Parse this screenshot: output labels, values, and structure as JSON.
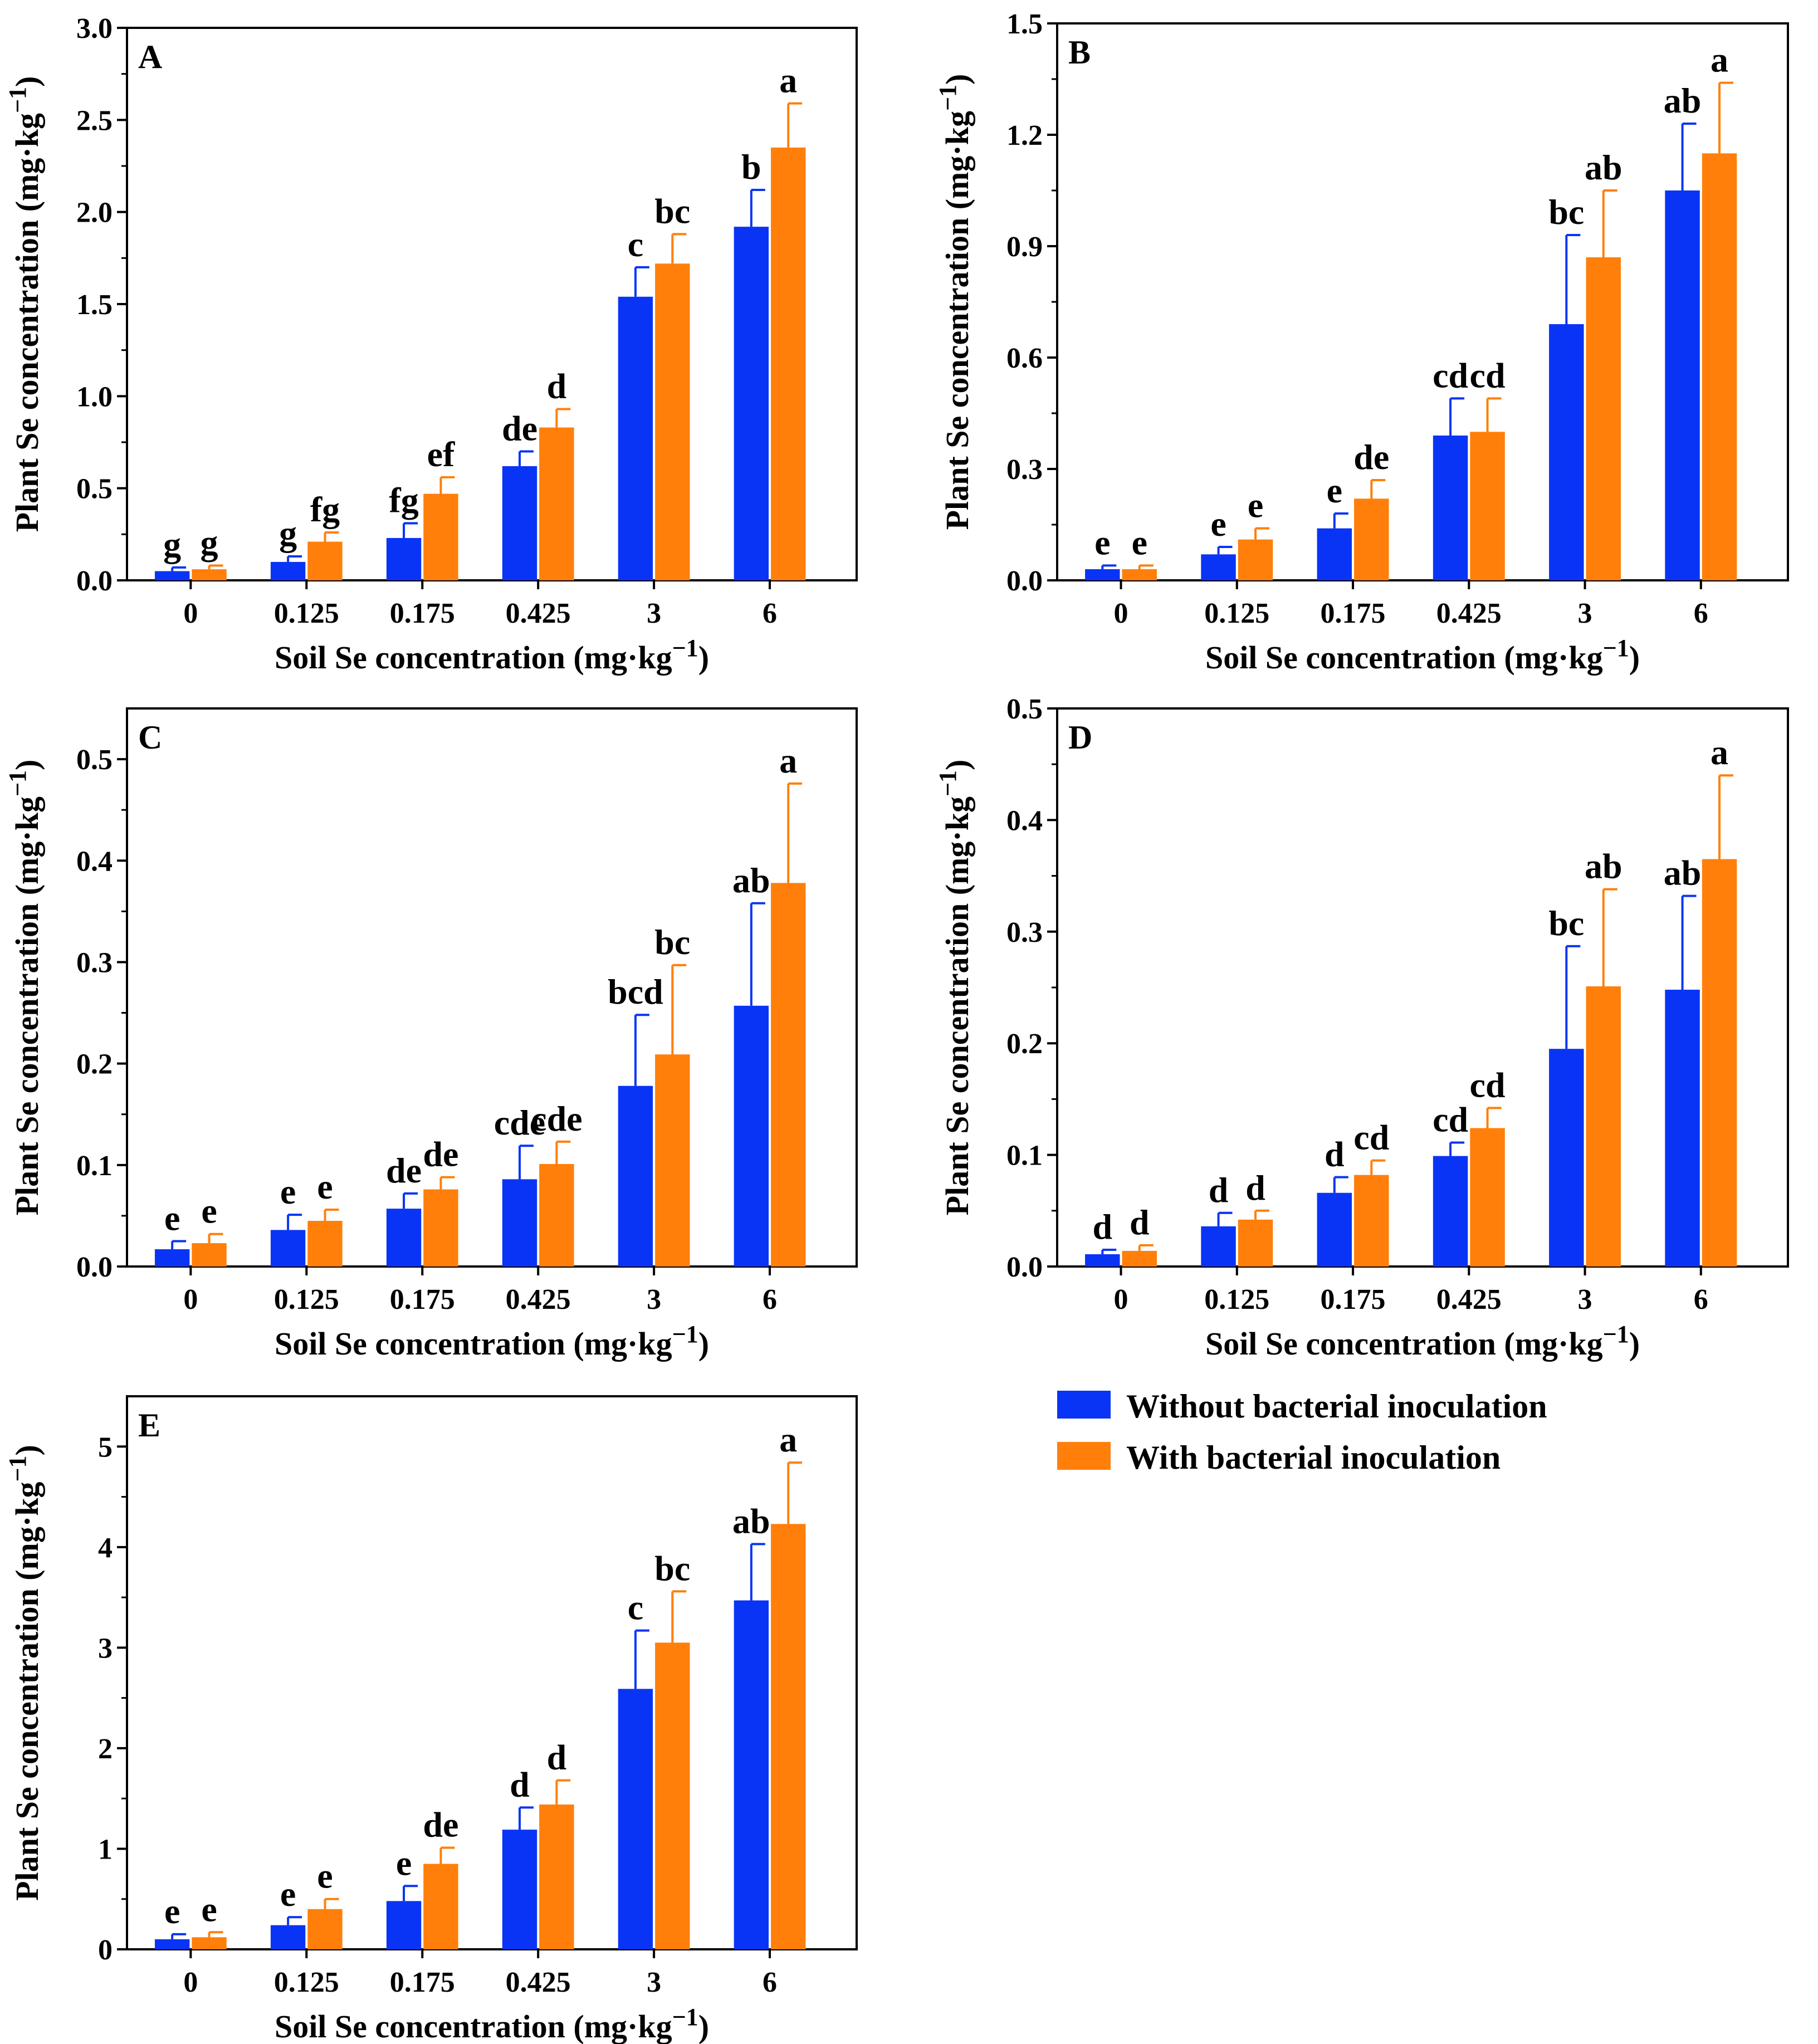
{
  "colors": {
    "without": "#0a34f5",
    "with": "#ff7f0a",
    "axis": "#000000"
  },
  "legend": {
    "items": [
      {
        "label": "Without bacterial inoculation",
        "color": "#0a34f5"
      },
      {
        "label": "With bacterial inoculation",
        "color": "#ff7f0a"
      }
    ]
  },
  "chart_data": [
    {
      "panel": "A",
      "type": "bar",
      "categories": [
        "0",
        "0.125",
        "0.175",
        "0.425",
        "3",
        "6"
      ],
      "xlabel": "Soil Se concentration (mg·kg⁻¹)",
      "ylabel": "Plant Se concentration (mg·kg⁻¹)",
      "ylim": [
        0,
        3.0
      ],
      "yticks": [
        "0.0",
        "0.5",
        "1.0",
        "1.5",
        "2.0",
        "2.5",
        "3.0"
      ],
      "series": [
        {
          "name": "Without bacterial inoculation",
          "values": [
            0.05,
            0.1,
            0.23,
            0.62,
            1.54,
            1.92
          ],
          "errors": [
            0.02,
            0.03,
            0.08,
            0.08,
            0.16,
            0.2
          ],
          "labels": [
            "g",
            "g",
            "fg",
            "de",
            "c",
            "b"
          ]
        },
        {
          "name": "With bacterial inoculation",
          "values": [
            0.06,
            0.21,
            0.47,
            0.83,
            1.72,
            2.35
          ],
          "errors": [
            0.02,
            0.05,
            0.09,
            0.1,
            0.16,
            0.24
          ],
          "labels": [
            "g",
            "fg",
            "ef",
            "d",
            "bc",
            "a"
          ]
        }
      ]
    },
    {
      "panel": "B",
      "type": "bar",
      "categories": [
        "0",
        "0.125",
        "0.175",
        "0.425",
        "3",
        "6"
      ],
      "xlabel": "Soil Se concentration (mg·kg⁻¹)",
      "ylabel": "Plant Se concentration (mg·kg⁻¹)",
      "ylim": [
        0,
        1.5
      ],
      "yticks": [
        "0.0",
        "0.3",
        "0.6",
        "0.9",
        "1.2",
        "1.5"
      ],
      "series": [
        {
          "name": "Without bacterial inoculation",
          "values": [
            0.03,
            0.07,
            0.14,
            0.39,
            0.69,
            1.05
          ],
          "errors": [
            0.01,
            0.02,
            0.04,
            0.1,
            0.24,
            0.18
          ],
          "labels": [
            "e",
            "e",
            "e",
            "cd",
            "bc",
            "ab"
          ]
        },
        {
          "name": "With bacterial inoculation",
          "values": [
            0.03,
            0.11,
            0.22,
            0.4,
            0.87,
            1.15
          ],
          "errors": [
            0.01,
            0.03,
            0.05,
            0.09,
            0.18,
            0.19
          ],
          "labels": [
            "e",
            "e",
            "de",
            "cd",
            "ab",
            "a"
          ]
        }
      ]
    },
    {
      "panel": "C",
      "type": "bar",
      "categories": [
        "0",
        "0.125",
        "0.175",
        "0.425",
        "3",
        "6"
      ],
      "xlabel": "Soil Se concentration (mg·kg⁻¹)",
      "ylabel": "Plant Se concentration (mg·kg⁻¹)",
      "ylim": [
        0,
        0.55
      ],
      "yticks": [
        "0.0",
        "0.1",
        "0.2",
        "0.3",
        "0.4",
        "0.5"
      ],
      "series": [
        {
          "name": "Without bacterial inoculation",
          "values": [
            0.017,
            0.036,
            0.057,
            0.086,
            0.178,
            0.257
          ],
          "errors": [
            0.008,
            0.015,
            0.015,
            0.033,
            0.07,
            0.101
          ],
          "labels": [
            "e",
            "e",
            "de",
            "cde",
            "bcd",
            "ab"
          ]
        },
        {
          "name": "With bacterial inoculation",
          "values": [
            0.023,
            0.045,
            0.076,
            0.101,
            0.209,
            0.378
          ],
          "errors": [
            0.009,
            0.011,
            0.012,
            0.022,
            0.088,
            0.098
          ],
          "labels": [
            "e",
            "e",
            "de",
            "cde",
            "bc",
            "a"
          ]
        }
      ]
    },
    {
      "panel": "D",
      "type": "bar",
      "categories": [
        "0",
        "0.125",
        "0.175",
        "0.425",
        "3",
        "6"
      ],
      "xlabel": "Soil Se concentration (mg·kg⁻¹)",
      "ylabel": "Plant Se concentration (mg·kg⁻¹)",
      "ylim": [
        0,
        0.5
      ],
      "yticks": [
        "0.0",
        "0.1",
        "0.2",
        "0.3",
        "0.4",
        "0.5"
      ],
      "series": [
        {
          "name": "Without bacterial inoculation",
          "values": [
            0.011,
            0.036,
            0.066,
            0.099,
            0.195,
            0.248
          ],
          "errors": [
            0.004,
            0.012,
            0.014,
            0.012,
            0.092,
            0.084
          ],
          "labels": [
            "d",
            "d",
            "d",
            "cd",
            "bc",
            "ab"
          ]
        },
        {
          "name": "With bacterial inoculation",
          "values": [
            0.014,
            0.042,
            0.082,
            0.124,
            0.251,
            0.365
          ],
          "errors": [
            0.005,
            0.008,
            0.013,
            0.018,
            0.087,
            0.075
          ],
          "labels": [
            "d",
            "d",
            "cd",
            "cd",
            "ab",
            "a"
          ]
        }
      ]
    },
    {
      "panel": "E",
      "type": "bar",
      "categories": [
        "0",
        "0.125",
        "0.175",
        "0.425",
        "3",
        "6"
      ],
      "xlabel": "Soil Se concentration (mg·kg⁻¹)",
      "ylabel": "Plant Se concentration (mg·kg⁻¹)",
      "ylim": [
        0,
        5.5
      ],
      "yticks": [
        "0",
        "1",
        "2",
        "3",
        "4",
        "5"
      ],
      "series": [
        {
          "name": "Without bacterial inoculation",
          "values": [
            0.1,
            0.24,
            0.48,
            1.19,
            2.59,
            3.47
          ],
          "errors": [
            0.05,
            0.08,
            0.15,
            0.22,
            0.58,
            0.56
          ],
          "labels": [
            "e",
            "e",
            "e",
            "d",
            "c",
            "ab"
          ]
        },
        {
          "name": "With bacterial inoculation",
          "values": [
            0.12,
            0.4,
            0.85,
            1.44,
            3.05,
            4.23
          ],
          "errors": [
            0.05,
            0.1,
            0.16,
            0.24,
            0.51,
            0.61
          ],
          "labels": [
            "e",
            "e",
            "de",
            "d",
            "bc",
            "a"
          ]
        }
      ]
    }
  ]
}
